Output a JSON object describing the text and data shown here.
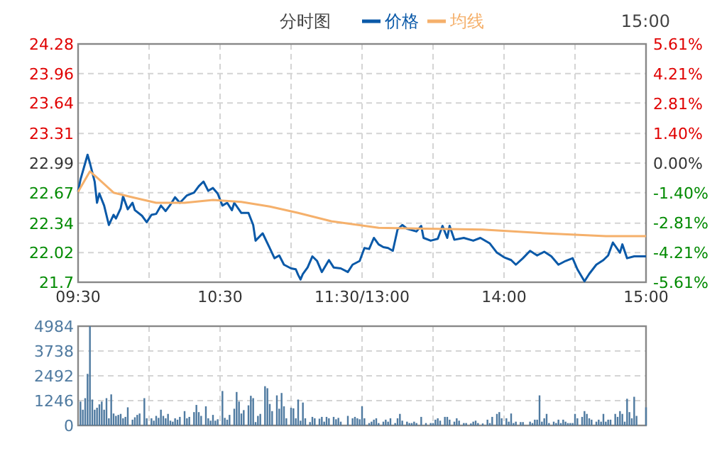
{
  "chart_data": [
    {
      "type": "line",
      "title": "分时图",
      "annotations": [
        "15:00"
      ],
      "legend": "top",
      "grid": true,
      "ylim": [
        21.7,
        24.28
      ],
      "y2lim": [
        -5.61,
        5.61
      ],
      "yticks": [
        21.7,
        22.02,
        22.34,
        22.67,
        22.99,
        23.31,
        23.64,
        23.96,
        24.28
      ],
      "y2ticks": [
        {
          "value": -5.61,
          "label": "-5.61%"
        },
        {
          "value": -4.21,
          "label": "-4.21%"
        },
        {
          "value": -2.81,
          "label": "-2.81%"
        },
        {
          "value": -1.4,
          "label": "-1.40%"
        },
        {
          "value": 0,
          "label": "0.00%"
        },
        {
          "value": 1.4,
          "label": "1.40%"
        },
        {
          "value": 2.81,
          "label": "2.81%"
        },
        {
          "value": 4.21,
          "label": "4.21%"
        },
        {
          "value": 5.61,
          "label": "5.61%"
        }
      ],
      "categories": [
        "09:30",
        null,
        null,
        null,
        null,
        null,
        null,
        null,
        null,
        null,
        null,
        null,
        null,
        null,
        null,
        null,
        null,
        null,
        null,
        null,
        null,
        null,
        null,
        null,
        null,
        null,
        null,
        null,
        null,
        null,
        null,
        null,
        null,
        null,
        null,
        null,
        null,
        null,
        null,
        null,
        null,
        null,
        null,
        null,
        null,
        null,
        null,
        null,
        null,
        null,
        null,
        null,
        null,
        null,
        null,
        null,
        null,
        null,
        null,
        null,
        "10:30",
        null,
        null,
        null,
        null,
        null,
        null,
        null,
        null,
        null,
        null,
        null,
        null,
        null,
        null,
        null,
        null,
        null,
        null,
        null,
        null,
        null,
        null,
        null,
        null,
        null,
        null,
        null,
        null,
        null,
        null,
        null,
        null,
        null,
        null,
        null,
        null,
        null,
        null,
        null,
        null,
        null,
        null,
        null,
        null,
        null,
        null,
        null,
        null,
        null,
        null,
        null,
        null,
        null,
        null,
        null,
        null,
        null,
        null,
        null,
        "11:30/13:00",
        null,
        null,
        null,
        null,
        null,
        null,
        null,
        null,
        null,
        null,
        null,
        null,
        null,
        null,
        null,
        null,
        null,
        null,
        null,
        null,
        null,
        null,
        null,
        null,
        null,
        null,
        null,
        null,
        null,
        null,
        null,
        null,
        null,
        null,
        null,
        null,
        null,
        null,
        null,
        null,
        null,
        null,
        null,
        null,
        null,
        null,
        null,
        null,
        null,
        null,
        null,
        null,
        null,
        null,
        null,
        null,
        null,
        null,
        null,
        "14:00",
        null,
        null,
        null,
        null,
        null,
        null,
        null,
        null,
        null,
        null,
        null,
        null,
        null,
        null,
        null,
        null,
        null,
        null,
        null,
        null,
        null,
        null,
        null,
        null,
        null,
        null,
        null,
        null,
        null,
        null,
        null,
        null,
        null,
        null,
        null,
        null,
        null,
        null,
        null,
        null,
        null,
        null,
        null,
        null,
        null,
        null,
        null,
        null,
        null,
        null,
        null,
        null,
        null,
        null,
        null,
        null,
        null,
        null,
        null,
        "15:00"
      ],
      "series": [
        {
          "name": "价格",
          "color": "#0a59a8",
          "values": [
            22.68,
            22.81,
            null,
            22.99,
            23.08,
            22.99,
            null,
            22.79,
            22.56,
            22.66,
            null,
            22.53,
            null,
            22.32,
            null,
            22.43,
            22.39,
            null,
            22.5,
            22.63,
            null,
            22.49,
            null,
            22.56,
            22.48,
            null,
            null,
            22.42,
            null,
            22.35,
            null,
            22.43,
            null,
            22.44,
            null,
            22.53,
            null,
            22.47,
            null,
            22.54,
            null,
            22.62,
            null,
            22.56,
            null,
            null,
            22.64,
            null,
            null,
            22.67,
            null,
            22.74,
            null,
            22.79,
            null,
            22.69,
            null,
            22.72,
            null,
            22.66,
            null,
            22.53,
            null,
            22.56,
            null,
            22.48,
            22.56,
            null,
            null,
            22.45,
            null,
            null,
            22.45,
            null,
            22.32,
            22.15,
            null,
            null,
            22.23,
            null,
            null,
            22.07,
            null,
            21.96,
            null,
            21.99,
            null,
            21.89,
            null,
            null,
            21.85,
            null,
            21.84,
            21.78,
            21.73,
            21.79,
            null,
            21.86,
            null,
            21.98,
            null,
            21.93,
            null,
            21.81,
            null,
            null,
            21.94,
            null,
            21.86,
            null,
            null,
            21.85,
            null,
            null,
            21.81,
            null,
            21.89,
            null,
            null,
            21.93,
            null,
            22.07,
            null,
            22.06,
            null,
            22.18,
            null,
            22.11,
            null,
            22.08,
            null,
            22.07,
            null,
            22.04,
            null,
            22.27,
            null,
            22.32,
            null,
            22.28,
            null,
            null,
            null,
            22.25,
            null,
            22.31,
            22.18,
            null,
            null,
            22.15,
            null,
            null,
            22.17,
            null,
            22.31,
            null,
            22.18,
            22.31,
            null,
            22.16,
            null,
            null,
            null,
            22.18,
            null,
            null,
            null,
            22.15,
            null,
            null,
            22.18,
            null,
            null,
            null,
            22.12,
            null,
            null,
            22.02,
            null,
            null,
            21.97,
            null,
            null,
            21.94,
            null,
            21.89,
            null,
            null,
            21.96,
            null,
            null,
            22.04,
            null,
            null,
            21.99,
            null,
            null,
            22.03,
            null,
            null,
            21.98,
            null,
            null,
            21.89,
            null,
            null,
            21.93,
            null,
            null,
            21.96,
            null,
            21.84,
            null,
            null,
            21.71,
            null,
            21.79,
            null,
            null,
            21.89,
            null,
            null,
            21.94,
            null,
            21.99,
            null,
            22.13,
            null,
            null,
            22.02,
            22.11,
            null,
            21.96,
            null,
            null,
            21.98,
            null,
            null,
            null,
            null,
            21.98
          ]
        },
        {
          "name": "均线",
          "color": "#f5b06b",
          "values": [
            22.68,
            null,
            null,
            null,
            null,
            22.9,
            null,
            null,
            null,
            22.81,
            null,
            null,
            null,
            null,
            null,
            22.67,
            null,
            null,
            null,
            null,
            null,
            null,
            null,
            22.62,
            null,
            null,
            null,
            null,
            null,
            null,
            null,
            null,
            null,
            22.56,
            null,
            null,
            null,
            null,
            null,
            null,
            null,
            null,
            null,
            null,
            null,
            22.56,
            null,
            null,
            null,
            null,
            null,
            null,
            null,
            null,
            null,
            null,
            null,
            22.59,
            null,
            null,
            null,
            null,
            null,
            null,
            null,
            null,
            null,
            null,
            null,
            22.57,
            null,
            null,
            null,
            null,
            null,
            null,
            null,
            null,
            null,
            null,
            null,
            22.52,
            null,
            null,
            null,
            null,
            null,
            null,
            null,
            null,
            null,
            null,
            null,
            22.45,
            null,
            null,
            null,
            null,
            null,
            null,
            null,
            null,
            null,
            null,
            null,
            null,
            null,
            22.36,
            null,
            null,
            null,
            null,
            null,
            null,
            null,
            null,
            null,
            null,
            null,
            null,
            null,
            null,
            null,
            null,
            null,
            null,
            null,
            22.29,
            null,
            null,
            null,
            null,
            null,
            null,
            null,
            null,
            null,
            null,
            null,
            null,
            null,
            null,
            null,
            null,
            null,
            null,
            null,
            22.28,
            null,
            null,
            null,
            null,
            null,
            null,
            null,
            null,
            null,
            null,
            null,
            null,
            null,
            null,
            null,
            null,
            null,
            null,
            null,
            null,
            null,
            null,
            null,
            22.27,
            null,
            null,
            null,
            null,
            null,
            null,
            null,
            null,
            null,
            null,
            null,
            null,
            null,
            null,
            null,
            null,
            null,
            null,
            null,
            null,
            null,
            null,
            null,
            null,
            null,
            22.23,
            null,
            null,
            null,
            null,
            null,
            null,
            null,
            null,
            null,
            null,
            null,
            null,
            null,
            null,
            null,
            null,
            null,
            null,
            null,
            null,
            null,
            null,
            null,
            null,
            null,
            22.2,
            null,
            null,
            null,
            null,
            null,
            null,
            null,
            null,
            null,
            null,
            null,
            null,
            null,
            null,
            null,
            null,
            22.2
          ]
        }
      ]
    },
    {
      "type": "bar",
      "grid": true,
      "tick_labels": "y",
      "ylim": [
        0,
        4984
      ],
      "yticks": [
        0,
        1246,
        2492,
        3738,
        4984
      ],
      "categories": [
        null,
        null,
        null,
        null,
        null,
        null,
        null,
        null,
        null,
        null,
        null,
        null,
        null,
        null,
        null,
        null,
        null,
        null,
        null,
        null,
        null,
        null,
        null,
        null,
        null,
        null,
        null,
        null,
        null,
        null,
        null,
        null,
        null,
        null,
        null,
        null,
        null,
        null,
        null,
        null,
        null,
        null,
        null,
        null,
        null,
        null,
        null,
        null,
        null,
        null,
        null,
        null,
        null,
        null,
        null,
        null,
        null,
        null,
        null,
        null,
        null,
        null,
        null,
        null,
        null,
        null,
        null,
        null,
        null,
        null,
        null,
        null,
        null,
        null,
        null,
        null,
        null,
        null,
        null,
        null,
        null,
        null,
        null,
        null,
        null,
        null,
        null,
        null,
        null,
        null,
        null,
        null,
        null,
        null,
        null,
        null,
        null,
        null,
        null,
        null,
        null,
        null,
        null,
        null,
        null,
        null,
        null,
        null,
        null,
        null,
        null,
        null,
        null,
        null,
        null,
        null,
        null,
        null,
        null,
        null,
        null,
        null,
        null,
        null,
        null,
        null,
        null,
        null,
        null,
        null,
        null,
        null,
        null,
        null,
        null,
        null,
        null,
        null,
        null,
        null,
        null,
        null,
        null,
        null,
        null,
        null,
        null,
        null,
        null,
        null,
        null,
        null,
        null,
        null,
        null,
        null,
        null,
        null,
        null,
        null,
        null,
        null,
        null,
        null,
        null,
        null,
        null,
        null,
        null,
        null,
        null,
        null,
        null,
        null,
        null,
        null,
        null,
        null,
        null,
        null,
        null,
        null,
        null,
        null,
        null,
        null,
        null,
        null,
        null,
        null,
        null,
        null,
        null,
        null,
        null,
        null,
        null,
        null,
        null,
        null,
        null,
        null,
        null,
        null,
        null,
        null,
        null,
        null,
        null,
        null,
        null,
        null,
        null,
        null,
        null,
        null,
        null,
        null,
        null,
        null,
        null,
        null,
        null,
        null,
        null,
        null,
        null,
        null,
        null,
        null,
        null,
        null,
        null,
        null,
        null,
        null,
        null,
        null,
        null,
        null,
        null
      ],
      "series": [
        {
          "color": "#4f7aa0",
          "values": [
            null,
            1200,
            790,
            1370,
            2590,
            4980,
            1300,
            790,
            890,
            1060,
            1200,
            790,
            1370,
            360,
            1560,
            600,
            480,
            530,
            580,
            360,
            430,
            910,
            null,
            290,
            410,
            530,
            600,
            null,
            1370,
            360,
            null,
            360,
            240,
            480,
            380,
            790,
            480,
            360,
            580,
            240,
            190,
            360,
            290,
            430,
            null,
            720,
            360,
            430,
            null,
            670,
            1030,
            670,
            480,
            null,
            960,
            360,
            240,
            530,
            240,
            310,
            null,
            1730,
            380,
            290,
            530,
            null,
            840,
            1680,
            1200,
            600,
            770,
            null,
            1010,
            1490,
            1370,
            170,
            480,
            580,
            null,
            1970,
            1870,
            1080,
            720,
            null,
            1510,
            840,
            1630,
            960,
            360,
            null,
            890,
            860,
            360,
            1300,
            240,
            1150,
            360,
            null,
            170,
            430,
            360,
            null,
            340,
            430,
            190,
            430,
            360,
            null,
            430,
            310,
            380,
            190,
            null,
            null,
            480,
            null,
            360,
            430,
            360,
            310,
            960,
            360,
            null,
            120,
            190,
            290,
            360,
            120,
            null,
            190,
            290,
            190,
            360,
            null,
            120,
            360,
            580,
            240,
            null,
            190,
            120,
            120,
            190,
            120,
            null,
            430,
            null,
            120,
            null,
            120,
            120,
            290,
            360,
            240,
            null,
            430,
            430,
            290,
            null,
            190,
            360,
            240,
            null,
            120,
            120,
            null,
            100,
            190,
            240,
            120,
            null,
            100,
            null,
            290,
            120,
            430,
            null,
            580,
            670,
            360,
            null,
            360,
            190,
            600,
            120,
            190,
            null,
            170,
            170,
            null,
            null,
            190,
            120,
            290,
            290,
            1510,
            190,
            360,
            580,
            120,
            null,
            190,
            120,
            290,
            120,
            290,
            190,
            120,
            120,
            120,
            580,
            360,
            null,
            430,
            720,
            580,
            360,
            290,
            null,
            190,
            290,
            190,
            580,
            190,
            290,
            290,
            null,
            580,
            430,
            720,
            580,
            190,
            1340,
            670,
            360,
            1440,
            480,
            null,
            null,
            null,
            910
          ]
        }
      ]
    }
  ]
}
